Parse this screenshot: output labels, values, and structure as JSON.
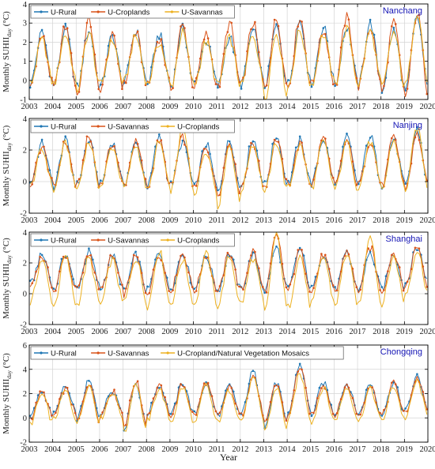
{
  "figure": {
    "x_axis_title": "Year",
    "y_axis_unit": "(°C)",
    "y_axis_label_main": "Monthly SUHII",
    "y_axis_label_sub": "day"
  },
  "colors": {
    "U-Rural": "#1f77b4",
    "U-Croplands": "#d95319",
    "U-Savannas": "#edb120",
    "city_label": "#1515b5",
    "grid": "#d4d4d4"
  },
  "chart_data": [
    {
      "type": "line",
      "city": "Nanchang",
      "x_range": [
        2003,
        2020
      ],
      "x_ticks": [
        2003,
        2004,
        2005,
        2006,
        2007,
        2008,
        2009,
        2010,
        2011,
        2012,
        2013,
        2014,
        2015,
        2016,
        2017,
        2018,
        2019,
        2020
      ],
      "ylim": [
        -1,
        4
      ],
      "y_ticks": [
        -1,
        0,
        1,
        2,
        3
      ],
      "y_tick_labels": [
        "-1",
        "0",
        "1",
        "2",
        "3"
      ],
      "y_top_label": "4",
      "grid": true,
      "legend_position": "top-left",
      "series": [
        {
          "name": "U-Rural",
          "color": "#1f77b4",
          "summer_peaks": [
            2.5,
            2.7,
            2.6,
            2.3,
            2.6,
            2.4,
            2.7,
            2.1,
            2.3,
            2.6,
            2.8,
            3.1,
            2.8,
            2.8,
            3.0,
            2.6,
            3.3
          ],
          "winter_lows": [
            -0.2,
            -0.3,
            -0.4,
            -0.3,
            -0.1,
            -0.2,
            -0.3,
            -0.2,
            -0.3,
            -0.2,
            -0.3,
            -0.2,
            -0.1,
            -0.2,
            -0.2,
            -0.5,
            -0.6
          ]
        },
        {
          "name": "U-Croplands",
          "color": "#d95319",
          "summer_peaks": [
            2.3,
            2.8,
            3.2,
            2.3,
            2.5,
            2.2,
            2.9,
            2.4,
            3.0,
            3.0,
            3.2,
            3.3,
            2.6,
            3.3,
            2.8,
            3.0,
            3.5
          ],
          "winter_lows": [
            -0.3,
            -0.4,
            -0.8,
            -0.4,
            -0.2,
            -0.3,
            -0.4,
            -0.3,
            -0.4,
            -0.3,
            -0.4,
            -0.3,
            -0.2,
            -0.3,
            -0.3,
            -0.6,
            -0.8
          ]
        },
        {
          "name": "U-Savannas",
          "color": "#edb120",
          "summer_peaks": [
            2.1,
            2.4,
            2.5,
            2.1,
            2.3,
            2.0,
            2.5,
            2.0,
            2.2,
            2.4,
            2.5,
            2.6,
            2.4,
            2.7,
            2.6,
            2.5,
            3.6
          ],
          "winter_lows": [
            -0.2,
            -0.2,
            -0.5,
            -0.2,
            -0.1,
            -0.2,
            -0.3,
            -0.2,
            -0.3,
            -0.3,
            -0.9,
            -0.3,
            -0.2,
            -0.2,
            -0.2,
            -0.4,
            -0.3
          ]
        }
      ]
    },
    {
      "type": "line",
      "city": "Nanjing",
      "x_range": [
        2003,
        2020
      ],
      "x_ticks": [
        2003,
        2004,
        2005,
        2006,
        2007,
        2008,
        2009,
        2010,
        2011,
        2012,
        2013,
        2014,
        2015,
        2016,
        2017,
        2018,
        2019,
        2020
      ],
      "ylim": [
        -2,
        4
      ],
      "y_ticks": [
        -2,
        0,
        2
      ],
      "y_tick_labels": [
        "-2",
        "0",
        "2"
      ],
      "y_top_label": "4",
      "grid": true,
      "legend_position": "top-left",
      "series": [
        {
          "name": "U-Rural",
          "color": "#1f77b4",
          "summer_peaks": [
            2.4,
            2.6,
            2.6,
            2.5,
            2.4,
            2.8,
            2.5,
            2.4,
            2.6,
            2.7,
            2.9,
            2.6,
            2.7,
            2.8,
            2.9,
            2.7,
            3.3
          ],
          "winter_lows": [
            -0.1,
            -0.3,
            -0.2,
            -0.2,
            -0.1,
            -0.3,
            -0.2,
            -0.4,
            -0.6,
            -0.2,
            -0.2,
            -0.1,
            -0.1,
            -0.2,
            -0.1,
            -0.2,
            -0.3
          ]
        },
        {
          "name": "U-Savannas",
          "color": "#d95319",
          "summer_peaks": [
            2.2,
            2.5,
            2.8,
            2.4,
            2.5,
            2.6,
            2.8,
            2.2,
            2.5,
            2.4,
            2.7,
            2.4,
            2.8,
            2.6,
            2.6,
            2.8,
            3.0
          ],
          "winter_lows": [
            -0.2,
            -0.4,
            -0.3,
            -0.2,
            -0.2,
            -0.4,
            -0.3,
            -0.5,
            -0.8,
            -0.3,
            -0.3,
            -0.2,
            -0.2,
            -0.3,
            -0.2,
            -0.3,
            -0.4
          ]
        },
        {
          "name": "U-Croplands",
          "color": "#edb120",
          "summer_peaks": [
            2.0,
            2.4,
            2.5,
            2.2,
            2.3,
            2.5,
            3.3,
            2.0,
            2.3,
            2.4,
            2.5,
            2.3,
            2.5,
            2.5,
            2.5,
            2.6,
            3.4
          ],
          "winter_lows": [
            -0.3,
            -0.6,
            -0.4,
            -0.3,
            -0.4,
            -0.6,
            -0.5,
            -0.7,
            -1.5,
            -0.5,
            -0.7,
            -0.4,
            -0.4,
            -0.5,
            -0.4,
            -0.5,
            -0.5
          ]
        }
      ]
    },
    {
      "type": "line",
      "city": "Shanghai",
      "x_range": [
        2003,
        2020
      ],
      "x_ticks": [
        2003,
        2004,
        2005,
        2006,
        2007,
        2008,
        2009,
        2010,
        2011,
        2012,
        2013,
        2014,
        2015,
        2016,
        2017,
        2018,
        2019,
        2020
      ],
      "ylim": [
        -2,
        4
      ],
      "y_ticks": [
        -2,
        0,
        2
      ],
      "y_tick_labels": [
        "-2",
        "0",
        "2"
      ],
      "y_top_label": "4",
      "grid": true,
      "legend_position": "top-left",
      "series": [
        {
          "name": "U-Rural",
          "color": "#1f77b4",
          "summer_peaks": [
            2.5,
            2.6,
            2.7,
            2.5,
            2.5,
            2.7,
            2.6,
            2.4,
            2.6,
            2.5,
            3.0,
            2.9,
            2.6,
            2.6,
            2.6,
            2.6,
            3.0
          ],
          "winter_lows": [
            0.6,
            0.2,
            0.4,
            0.3,
            0.1,
            0.2,
            0.4,
            0.3,
            0.2,
            0.3,
            0.2,
            0.3,
            0.3,
            0.2,
            0.3,
            0.3,
            0.7
          ]
        },
        {
          "name": "U-Savannas",
          "color": "#d95319",
          "summer_peaks": [
            2.4,
            2.5,
            2.6,
            2.4,
            2.4,
            2.6,
            2.6,
            2.5,
            2.7,
            2.8,
            3.7,
            2.8,
            2.5,
            2.8,
            3.0,
            2.7,
            3.1
          ],
          "winter_lows": [
            0.5,
            0.1,
            0.3,
            0.2,
            0.0,
            0.1,
            0.3,
            0.2,
            0.1,
            0.2,
            0.1,
            0.2,
            0.2,
            0.1,
            0.2,
            0.2,
            0.5
          ]
        },
        {
          "name": "U-Croplands",
          "color": "#edb120",
          "summer_peaks": [
            2.2,
            2.4,
            2.3,
            2.2,
            2.3,
            2.8,
            2.2,
            2.6,
            2.4,
            2.3,
            3.9,
            2.5,
            2.4,
            2.6,
            3.9,
            2.4,
            2.8
          ],
          "winter_lows": [
            -0.6,
            -0.8,
            -0.7,
            -0.7,
            -0.5,
            -0.8,
            -0.6,
            -0.7,
            -0.8,
            -0.6,
            -1.2,
            -0.9,
            -0.6,
            -0.7,
            -0.8,
            -0.6,
            0.0
          ]
        }
      ]
    },
    {
      "type": "line",
      "city": "Chongqing",
      "x_range": [
        2003,
        2020
      ],
      "x_ticks": [
        2003,
        2004,
        2005,
        2006,
        2007,
        2008,
        2009,
        2010,
        2011,
        2012,
        2013,
        2014,
        2015,
        2016,
        2017,
        2018,
        2019,
        2020
      ],
      "ylim": [
        -2,
        6
      ],
      "y_ticks": [
        -2,
        0,
        2,
        4
      ],
      "y_tick_labels": [
        "-2",
        "0",
        "2",
        "4"
      ],
      "y_top_label": "6",
      "grid": true,
      "legend_position": "top-left",
      "series": [
        {
          "name": "U-Rural",
          "color": "#1f77b4",
          "summer_peaks": [
            2.2,
            2.5,
            3.0,
            2.3,
            2.8,
            2.7,
            2.9,
            2.8,
            2.6,
            3.8,
            2.9,
            4.4,
            2.9,
            2.8,
            2.8,
            2.9,
            3.4
          ],
          "winter_lows": [
            0.1,
            0.3,
            0.0,
            0.4,
            -0.8,
            0.4,
            0.3,
            0.3,
            0.2,
            0.3,
            -0.7,
            0.4,
            0.3,
            0.4,
            0.3,
            0.3,
            0.6
          ]
        },
        {
          "name": "U-Savannas",
          "color": "#d95319",
          "summer_peaks": [
            2.1,
            2.4,
            2.9,
            2.2,
            3.0,
            2.6,
            2.7,
            2.9,
            2.5,
            3.5,
            2.8,
            4.2,
            2.8,
            2.7,
            2.7,
            2.9,
            3.3
          ],
          "winter_lows": [
            0.0,
            0.2,
            -0.3,
            0.3,
            -0.6,
            0.3,
            0.2,
            0.2,
            0.1,
            0.2,
            -0.5,
            0.3,
            0.2,
            0.3,
            0.2,
            0.2,
            0.5
          ]
        },
        {
          "name": "U-Cropland/Natural Vegetation Mosaics",
          "color": "#edb120",
          "summer_peaks": [
            1.9,
            2.2,
            2.7,
            2.1,
            2.9,
            2.4,
            2.5,
            2.7,
            2.3,
            3.2,
            2.5,
            3.6,
            2.5,
            2.5,
            2.4,
            2.6,
            3.0
          ],
          "winter_lows": [
            -0.5,
            -0.1,
            -0.4,
            0.0,
            -1.3,
            -0.2,
            -0.3,
            -0.5,
            -0.3,
            -0.2,
            -1.0,
            -0.2,
            -0.3,
            -0.1,
            -0.3,
            -0.2,
            0.0
          ]
        }
      ]
    }
  ]
}
